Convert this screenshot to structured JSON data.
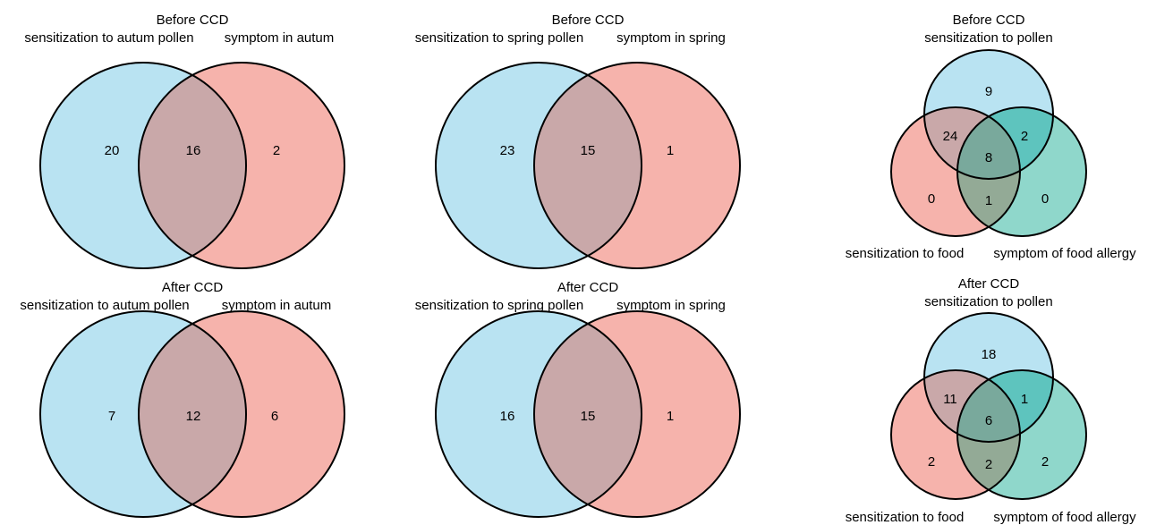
{
  "colors": {
    "set_blue": "#b9e3f2",
    "set_red": "#f6b3ac",
    "set_teal": "#8fd7cb",
    "overlap_blue_red": "#c9a8a9",
    "overlap_blue_teal": "#5ec4be",
    "overlap_red_teal": "#93aa96",
    "overlap_all": "#79a99c",
    "stroke": "#000000"
  },
  "panels": {
    "autumn_before": {
      "title": "Before CCD",
      "left_label": "sensitization to autum pollen",
      "right_label": "symptom in autum",
      "left_only": "20",
      "both": "16",
      "right_only": "2"
    },
    "spring_before": {
      "title": "Before CCD",
      "left_label": "sensitization to spring pollen",
      "right_label": "symptom in spring",
      "left_only": "23",
      "both": "15",
      "right_only": "1"
    },
    "triple_before": {
      "title": "Before CCD",
      "top_label": "sensitization to pollen",
      "left_label": "sensitization to food",
      "right_label": "symptom of food allergy",
      "pollen_only": "9",
      "pollen_food": "24",
      "pollen_symptom": "2",
      "all": "8",
      "food_only": "0",
      "food_symptom": "1",
      "symptom_only": "0"
    },
    "autumn_after": {
      "title": "After CCD",
      "left_label": "sensitization to autum pollen",
      "right_label": "symptom in autum",
      "left_only": "7",
      "both": "12",
      "right_only": "6"
    },
    "spring_after": {
      "title": "After CCD",
      "left_label": "sensitization to spring pollen",
      "right_label": "symptom in spring",
      "left_only": "16",
      "both": "15",
      "right_only": "1"
    },
    "triple_after": {
      "title": "After CCD",
      "top_label": "sensitization to pollen",
      "left_label": "sensitization to food",
      "right_label": "symptom of food allergy",
      "pollen_only": "18",
      "pollen_food": "11",
      "pollen_symptom": "1",
      "all": "6",
      "food_only": "2",
      "food_symptom": "2",
      "symptom_only": "2"
    }
  }
}
